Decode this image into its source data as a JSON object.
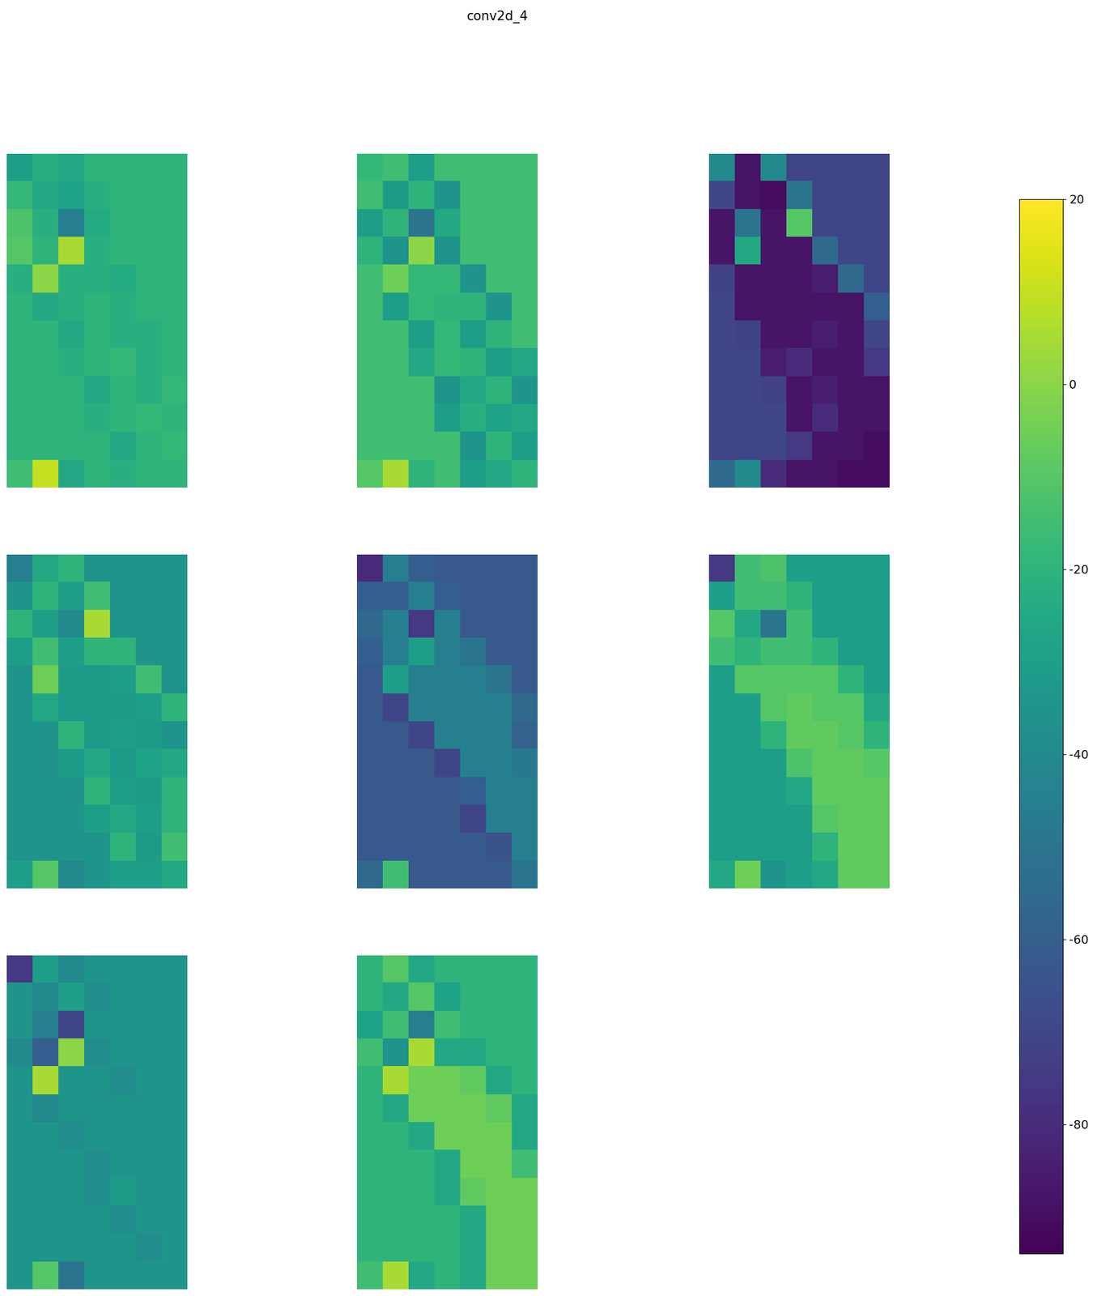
{
  "chart_data": {
    "type": "heatmap",
    "title": "conv2d_4",
    "color": "viridis",
    "tick_labels": false,
    "colorbar_lim": [
      -94,
      20
    ],
    "colorbar_ticks": [
      -80,
      -60,
      -40,
      -20,
      0,
      20
    ],
    "maps": [
      [
        [
          -30,
          -22,
          -25,
          -20,
          -20,
          -20,
          -20
        ],
        [
          -18,
          -25,
          -28,
          -22,
          -20,
          -20,
          -20
        ],
        [
          -12,
          -22,
          -45,
          -24,
          -20,
          -20,
          -20
        ],
        [
          -10,
          -20,
          5,
          -22,
          -20,
          -20,
          -20
        ],
        [
          -22,
          0,
          -22,
          -22,
          -24,
          -20,
          -20
        ],
        [
          -20,
          -25,
          -22,
          -20,
          -22,
          -20,
          -20
        ],
        [
          -20,
          -20,
          -25,
          -20,
          -22,
          -22,
          -20
        ],
        [
          -20,
          -20,
          -22,
          -20,
          -18,
          -22,
          -20
        ],
        [
          -20,
          -20,
          -20,
          -25,
          -20,
          -22,
          -18
        ],
        [
          -20,
          -20,
          -20,
          -22,
          -20,
          -18,
          -20
        ],
        [
          -20,
          -20,
          -20,
          -20,
          -25,
          -20,
          -18
        ],
        [
          -15,
          10,
          -25,
          -20,
          -22,
          -20,
          -20
        ]
      ],
      [
        [
          -18,
          -15,
          -30,
          -15,
          -15,
          -15,
          -15
        ],
        [
          -15,
          -32,
          -20,
          -35,
          -15,
          -15,
          -15
        ],
        [
          -30,
          -20,
          -50,
          -25,
          -15,
          -15,
          -15
        ],
        [
          -20,
          -35,
          0,
          -35,
          -15,
          -15,
          -15
        ],
        [
          -15,
          -5,
          -18,
          -18,
          -35,
          -15,
          -15
        ],
        [
          -15,
          -30,
          -18,
          -20,
          -20,
          -35,
          -15
        ],
        [
          -15,
          -15,
          -30,
          -18,
          -30,
          -20,
          -15
        ],
        [
          -15,
          -15,
          -25,
          -18,
          -20,
          -30,
          -25
        ],
        [
          -15,
          -15,
          -15,
          -35,
          -25,
          -20,
          -35
        ],
        [
          -15,
          -15,
          -15,
          -30,
          -22,
          -28,
          -25
        ],
        [
          -15,
          -15,
          -15,
          -15,
          -35,
          -20,
          -30
        ],
        [
          -10,
          5,
          -20,
          -15,
          -30,
          -25,
          -20
        ]
      ],
      [
        [
          -40,
          -88,
          -40,
          -70,
          -70,
          -70,
          -70
        ],
        [
          -70,
          -88,
          -90,
          -50,
          -70,
          -70,
          -70
        ],
        [
          -88,
          -50,
          -88,
          -10,
          -70,
          -70,
          -70
        ],
        [
          -88,
          -25,
          -88,
          -88,
          -55,
          -70,
          -70
        ],
        [
          -72,
          -88,
          -88,
          -88,
          -85,
          -55,
          -70
        ],
        [
          -70,
          -88,
          -88,
          -88,
          -88,
          -88,
          -60
        ],
        [
          -70,
          -72,
          -88,
          -88,
          -85,
          -88,
          -70
        ],
        [
          -70,
          -70,
          -85,
          -80,
          -88,
          -88,
          -75
        ],
        [
          -70,
          -70,
          -72,
          -88,
          -85,
          -88,
          -88
        ],
        [
          -70,
          -70,
          -70,
          -88,
          -80,
          -88,
          -88
        ],
        [
          -70,
          -70,
          -70,
          -75,
          -88,
          -88,
          -90
        ],
        [
          -55,
          -40,
          -80,
          -88,
          -88,
          -90,
          -90
        ]
      ],
      [
        [
          -45,
          -25,
          -20,
          -35,
          -35,
          -35,
          -35
        ],
        [
          -35,
          -20,
          -30,
          -15,
          -35,
          -35,
          -35
        ],
        [
          -20,
          -30,
          -40,
          5,
          -35,
          -35,
          -35
        ],
        [
          -30,
          -15,
          -30,
          -20,
          -20,
          -35,
          -35
        ],
        [
          -35,
          -5,
          -32,
          -32,
          -30,
          -15,
          -35
        ],
        [
          -35,
          -25,
          -32,
          -32,
          -32,
          -30,
          -20
        ],
        [
          -35,
          -35,
          -20,
          -32,
          -30,
          -32,
          -35
        ],
        [
          -35,
          -35,
          -32,
          -25,
          -32,
          -28,
          -25
        ],
        [
          -35,
          -35,
          -35,
          -20,
          -30,
          -32,
          -20
        ],
        [
          -35,
          -35,
          -35,
          -30,
          -25,
          -30,
          -20
        ],
        [
          -35,
          -35,
          -35,
          -35,
          -20,
          -32,
          -15
        ],
        [
          -30,
          -10,
          -40,
          -35,
          -30,
          -30,
          -25
        ]
      ],
      [
        [
          -80,
          -45,
          -60,
          -62,
          -62,
          -62,
          -62
        ],
        [
          -60,
          -60,
          -45,
          -60,
          -62,
          -62,
          -62
        ],
        [
          -55,
          -45,
          -75,
          -45,
          -62,
          -62,
          -62
        ],
        [
          -60,
          -45,
          -30,
          -45,
          -50,
          -62,
          -62
        ],
        [
          -62,
          -30,
          -45,
          -45,
          -45,
          -50,
          -62
        ],
        [
          -62,
          -70,
          -45,
          -45,
          -45,
          -45,
          -55
        ],
        [
          -62,
          -62,
          -70,
          -45,
          -45,
          -45,
          -58
        ],
        [
          -62,
          -62,
          -62,
          -70,
          -45,
          -45,
          -48
        ],
        [
          -62,
          -62,
          -62,
          -62,
          -60,
          -45,
          -45
        ],
        [
          -62,
          -62,
          -62,
          -62,
          -70,
          -45,
          -45
        ],
        [
          -62,
          -62,
          -62,
          -62,
          -62,
          -65,
          -45
        ],
        [
          -55,
          -15,
          -62,
          -62,
          -62,
          -62,
          -50
        ]
      ],
      [
        [
          -75,
          -15,
          -12,
          -30,
          -30,
          -30,
          -30
        ],
        [
          -30,
          -15,
          -15,
          -20,
          -30,
          -30,
          -30
        ],
        [
          -10,
          -25,
          -50,
          -15,
          -30,
          -30,
          -30
        ],
        [
          -15,
          -20,
          -15,
          -15,
          -20,
          -30,
          -30
        ],
        [
          -30,
          -10,
          -10,
          -10,
          -10,
          -20,
          -30
        ],
        [
          -30,
          -30,
          -10,
          -8,
          -10,
          -10,
          -25
        ],
        [
          -30,
          -30,
          -20,
          -8,
          -8,
          -10,
          -20
        ],
        [
          -30,
          -30,
          -30,
          -12,
          -8,
          -8,
          -10
        ],
        [
          -30,
          -30,
          -30,
          -25,
          -8,
          -8,
          -8
        ],
        [
          -30,
          -30,
          -30,
          -30,
          -10,
          -8,
          -8
        ],
        [
          -30,
          -30,
          -30,
          -30,
          -20,
          -8,
          -8
        ],
        [
          -25,
          -5,
          -35,
          -30,
          -25,
          -8,
          -8
        ]
      ],
      [
        [
          -75,
          -30,
          -40,
          -35,
          -35,
          -35,
          -35
        ],
        [
          -35,
          -40,
          -30,
          -38,
          -35,
          -35,
          -35
        ],
        [
          -35,
          -45,
          -70,
          -35,
          -35,
          -35,
          -35
        ],
        [
          -40,
          -60,
          0,
          -38,
          -35,
          -35,
          -35
        ],
        [
          -35,
          5,
          -35,
          -35,
          -38,
          -35,
          -35
        ],
        [
          -35,
          -40,
          -35,
          -35,
          -35,
          -35,
          -35
        ],
        [
          -35,
          -35,
          -38,
          -35,
          -35,
          -35,
          -35
        ],
        [
          -35,
          -35,
          -35,
          -38,
          -35,
          -35,
          -35
        ],
        [
          -35,
          -35,
          -35,
          -38,
          -32,
          -35,
          -35
        ],
        [
          -35,
          -35,
          -35,
          -35,
          -38,
          -35,
          -35
        ],
        [
          -35,
          -35,
          -35,
          -35,
          -35,
          -38,
          -35
        ],
        [
          -35,
          -10,
          -50,
          -35,
          -35,
          -35,
          -35
        ]
      ],
      [
        [
          -20,
          -10,
          -25,
          -20,
          -20,
          -20,
          -20
        ],
        [
          -20,
          -25,
          -10,
          -28,
          -20,
          -20,
          -20
        ],
        [
          -28,
          -15,
          -45,
          -15,
          -20,
          -20,
          -20
        ],
        [
          -15,
          -35,
          5,
          -25,
          -25,
          -20,
          -20
        ],
        [
          -20,
          5,
          -5,
          -5,
          -8,
          -25,
          -20
        ],
        [
          -20,
          -25,
          -5,
          -5,
          -5,
          -8,
          -25
        ],
        [
          -20,
          -20,
          -25,
          -5,
          -5,
          -5,
          -25
        ],
        [
          -20,
          -20,
          -20,
          -25,
          -5,
          -5,
          -15
        ],
        [
          -20,
          -20,
          -20,
          -25,
          -8,
          -5,
          -5
        ],
        [
          -20,
          -20,
          -20,
          -20,
          -25,
          -5,
          -5
        ],
        [
          -20,
          -20,
          -20,
          -20,
          -25,
          -5,
          -5
        ],
        [
          -15,
          5,
          -25,
          -20,
          -25,
          -5,
          -5
        ]
      ]
    ]
  }
}
